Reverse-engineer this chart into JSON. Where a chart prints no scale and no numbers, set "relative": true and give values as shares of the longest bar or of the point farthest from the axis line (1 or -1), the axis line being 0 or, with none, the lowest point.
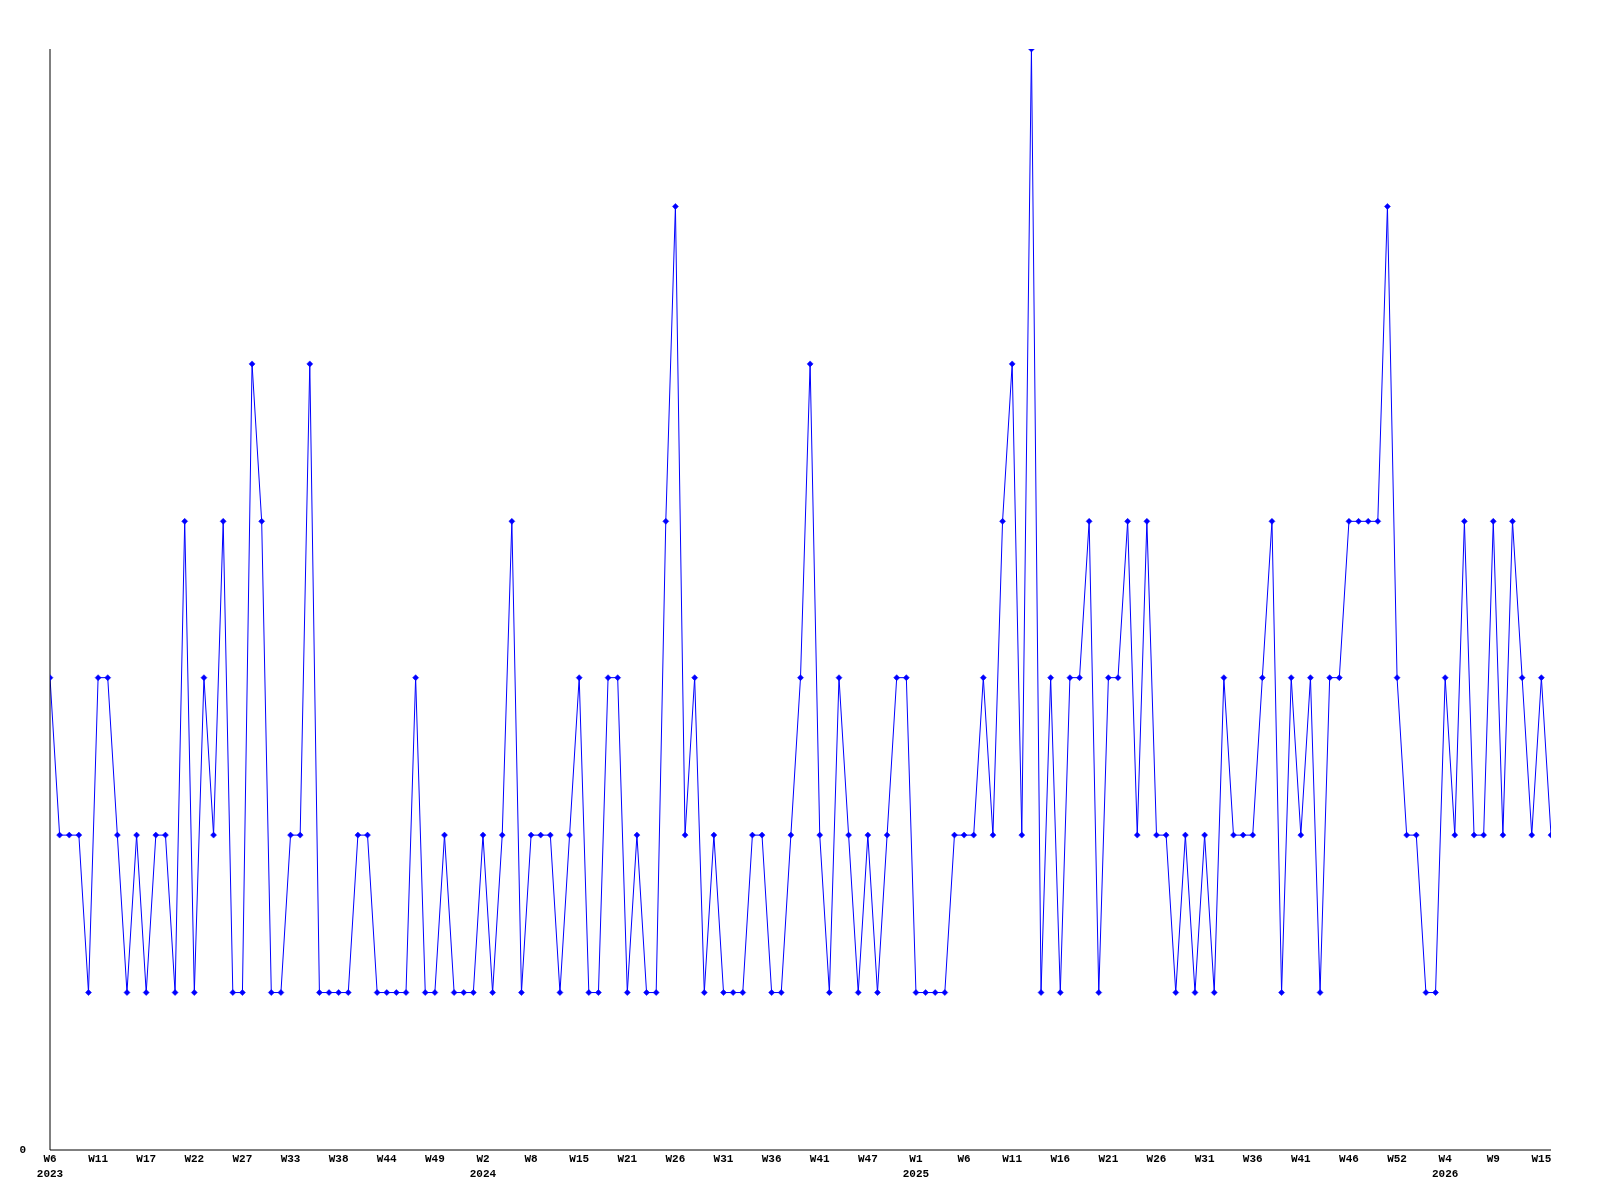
{
  "chart_data": {
    "type": "line",
    "relative": true,
    "color": "#0000ff",
    "marker": "diamond",
    "line_style": "solid",
    "annotations": [
      "0"
    ],
    "categories": [
      "W6\n2023",
      null,
      null,
      null,
      null,
      "W11",
      null,
      null,
      null,
      null,
      "W17",
      null,
      null,
      null,
      null,
      "W22",
      null,
      null,
      null,
      null,
      "W27",
      null,
      null,
      null,
      null,
      "W33",
      null,
      null,
      null,
      null,
      "W38",
      null,
      null,
      null,
      null,
      "W44",
      null,
      null,
      null,
      null,
      "W49",
      null,
      null,
      null,
      null,
      "W2\n2024",
      null,
      null,
      null,
      null,
      "W8",
      null,
      null,
      null,
      null,
      "W15",
      null,
      null,
      null,
      null,
      "W21",
      null,
      null,
      null,
      null,
      "W26",
      null,
      null,
      null,
      null,
      "W31",
      null,
      null,
      null,
      null,
      "W36",
      null,
      null,
      null,
      null,
      "W41",
      null,
      null,
      null,
      null,
      "W47",
      null,
      null,
      null,
      null,
      "W1\n2025",
      null,
      null,
      null,
      null,
      "W6",
      null,
      null,
      null,
      null,
      "W11",
      null,
      null,
      null,
      null,
      "W16",
      null,
      null,
      null,
      null,
      "W21",
      null,
      null,
      null,
      null,
      "W26",
      null,
      null,
      null,
      null,
      "W31",
      null,
      null,
      null,
      null,
      "W36",
      null,
      null,
      null,
      null,
      "W41",
      null,
      null,
      null,
      null,
      "W46",
      null,
      null,
      null,
      null,
      "W52",
      null,
      null,
      null,
      null,
      "W4\n2026",
      null,
      null,
      null,
      null,
      "W9",
      null,
      null,
      null,
      null,
      "W15",
      null
    ],
    "values": [
      0.429,
      0.286,
      0.286,
      0.286,
      0.143,
      0.429,
      0.429,
      0.286,
      0.143,
      0.286,
      0.143,
      0.286,
      0.286,
      0.143,
      0.571,
      0.143,
      0.429,
      0.286,
      0.571,
      0.143,
      0.143,
      0.714,
      0.571,
      0.143,
      0.143,
      0.286,
      0.286,
      0.714,
      0.143,
      0.143,
      0.143,
      0.143,
      0.286,
      0.286,
      0.143,
      0.143,
      0.143,
      0.143,
      0.429,
      0.143,
      0.143,
      0.286,
      0.143,
      0.143,
      0.143,
      0.286,
      0.143,
      0.286,
      0.571,
      0.143,
      0.286,
      0.286,
      0.286,
      0.143,
      0.286,
      0.429,
      0.143,
      0.143,
      0.429,
      0.429,
      0.143,
      0.286,
      0.143,
      0.143,
      0.571,
      0.857,
      0.286,
      0.429,
      0.143,
      0.286,
      0.143,
      0.143,
      0.143,
      0.286,
      0.286,
      0.143,
      0.143,
      0.286,
      0.429,
      0.714,
      0.286,
      0.143,
      0.429,
      0.286,
      0.143,
      0.286,
      0.143,
      0.286,
      0.429,
      0.429,
      0.143,
      0.143,
      0.143,
      0.143,
      0.286,
      0.286,
      0.286,
      0.429,
      0.286,
      0.571,
      0.714,
      0.286,
      1,
      0.143,
      0.429,
      0.143,
      0.429,
      0.429,
      0.571,
      0.143,
      0.429,
      0.429,
      0.571,
      0.286,
      0.571,
      0.286,
      0.286,
      0.143,
      0.286,
      0.143,
      0.286,
      0.143,
      0.429,
      0.286,
      0.286,
      0.286,
      0.429,
      0.571,
      0.143,
      0.429,
      0.286,
      0.429,
      0.143,
      0.429,
      0.429,
      0.571,
      0.571,
      0.571,
      0.571,
      0.857,
      0.429,
      0.286,
      0.286,
      0.143,
      0.143,
      0.429,
      0.286,
      0.571,
      0.286,
      0.286,
      0.571,
      0.286,
      0.571,
      0.429,
      0.286,
      0.429,
      0.286
    ]
  }
}
